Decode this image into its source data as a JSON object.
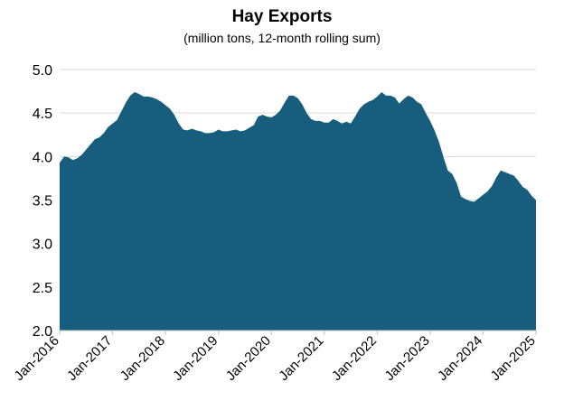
{
  "chart_data": {
    "type": "area",
    "title": "Hay Exports",
    "subtitle": "(million tons, 12-month rolling sum)",
    "color": "#175e7e",
    "grid": true,
    "ylim": [
      2,
      5
    ],
    "yticks": [
      {
        "value": 2,
        "label": "2.0"
      },
      2.5,
      {
        "value": 3,
        "label": "3.0"
      },
      3.5,
      {
        "value": 4,
        "label": "4.0"
      },
      4.5,
      {
        "value": 5,
        "label": "5.0"
      }
    ],
    "categories": [
      "Jan-2016",
      null,
      null,
      null,
      null,
      null,
      null,
      null,
      null,
      null,
      null,
      null,
      "Jan-2017",
      null,
      null,
      null,
      null,
      null,
      null,
      null,
      null,
      null,
      null,
      null,
      "Jan-2018",
      null,
      null,
      null,
      null,
      null,
      null,
      null,
      null,
      null,
      null,
      null,
      "Jan-2019",
      null,
      null,
      null,
      null,
      null,
      null,
      null,
      null,
      null,
      null,
      null,
      "Jan-2020",
      null,
      null,
      null,
      null,
      null,
      null,
      null,
      null,
      null,
      null,
      null,
      "Jan-2021",
      null,
      null,
      null,
      null,
      null,
      null,
      null,
      null,
      null,
      null,
      null,
      "Jan-2022",
      null,
      null,
      null,
      null,
      null,
      null,
      null,
      null,
      null,
      null,
      null,
      "Jan-2023",
      null,
      null,
      null,
      null,
      null,
      null,
      null,
      null,
      null,
      null,
      null,
      "Jan-2024",
      null,
      null,
      null,
      null,
      null,
      null,
      null,
      null,
      null,
      null,
      null,
      "Jan-2025"
    ],
    "values": [
      3.93,
      4.0,
      3.99,
      3.96,
      3.98,
      4.02,
      4.08,
      4.14,
      4.2,
      4.22,
      4.27,
      4.34,
      4.38,
      4.42,
      4.52,
      4.62,
      4.7,
      4.74,
      4.72,
      4.69,
      4.69,
      4.68,
      4.66,
      4.63,
      4.59,
      4.55,
      4.48,
      4.38,
      4.31,
      4.3,
      4.32,
      4.3,
      4.29,
      4.27,
      4.27,
      4.28,
      4.31,
      4.29,
      4.29,
      4.3,
      4.31,
      4.29,
      4.3,
      4.33,
      4.36,
      4.46,
      4.48,
      4.46,
      4.45,
      4.48,
      4.53,
      4.62,
      4.7,
      4.7,
      4.67,
      4.6,
      4.5,
      4.43,
      4.41,
      4.41,
      4.39,
      4.39,
      4.43,
      4.41,
      4.38,
      4.4,
      4.38,
      4.46,
      4.55,
      4.6,
      4.63,
      4.65,
      4.69,
      4.74,
      4.7,
      4.7,
      4.68,
      4.61,
      4.66,
      4.7,
      4.68,
      4.63,
      4.6,
      4.5,
      4.41,
      4.3,
      4.17,
      4.0,
      3.84,
      3.8,
      3.7,
      3.54,
      3.51,
      3.49,
      3.48,
      3.52,
      3.56,
      3.6,
      3.66,
      3.76,
      3.84,
      3.82,
      3.8,
      3.78,
      3.72,
      3.65,
      3.62,
      3.55,
      3.5
    ]
  }
}
